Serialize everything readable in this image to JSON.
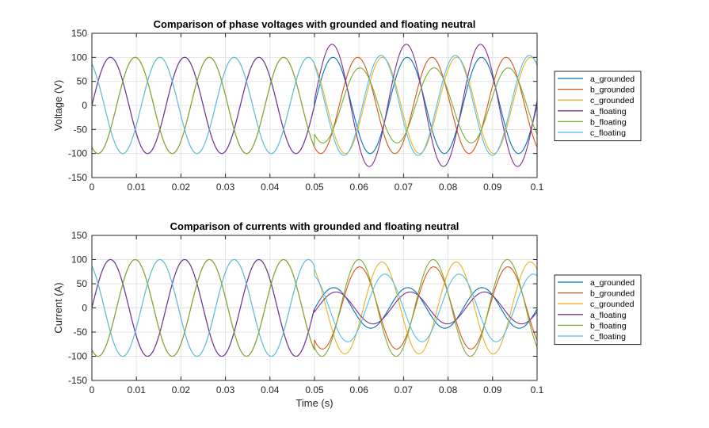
{
  "chart_data": [
    {
      "type": "line",
      "title": "Comparison of phase voltages with grounded and floating neutral",
      "xlabel": "",
      "ylabel": "Voltage (V)",
      "xlim": [
        0,
        0.1
      ],
      "ylim": [
        -150,
        150
      ],
      "xticks": [
        "0",
        "0.01",
        "0.02",
        "0.03",
        "0.04",
        "0.05",
        "0.06",
        "0.07",
        "0.08",
        "0.09",
        "0.1"
      ],
      "yticks": [
        "150",
        "100",
        "50",
        "0",
        "-50",
        "-100",
        "-150"
      ],
      "grid": true,
      "legend_position": "right",
      "fault_time": 0.05,
      "series": [
        {
          "name": "a_grounded",
          "color": "#0072BD",
          "amplitude_before": 100,
          "amplitude_after": 100
        },
        {
          "name": "b_grounded",
          "color": "#D95319",
          "amplitude_before": 100,
          "amplitude_after": 100
        },
        {
          "name": "c_grounded",
          "color": "#EDB120",
          "amplitude_before": 100,
          "amplitude_after": 100
        },
        {
          "name": "a_floating",
          "color": "#7E2F8E",
          "amplitude_before": 100,
          "amplitude_after": 127
        },
        {
          "name": "b_floating",
          "color": "#77AC30",
          "amplitude_before": 100,
          "amplitude_after": 78
        },
        {
          "name": "c_floating",
          "color": "#4DBEEE",
          "amplitude_before": 100,
          "amplitude_after": 104
        }
      ]
    },
    {
      "type": "line",
      "title": "Comparison of currents with grounded and floating neutral",
      "xlabel": "Time (s)",
      "ylabel": "Current (A)",
      "xlim": [
        0,
        0.1
      ],
      "ylim": [
        -150,
        150
      ],
      "xticks": [
        "0",
        "0.01",
        "0.02",
        "0.03",
        "0.04",
        "0.05",
        "0.06",
        "0.07",
        "0.08",
        "0.09",
        "0.1"
      ],
      "yticks": [
        "150",
        "100",
        "50",
        "0",
        "-50",
        "-100",
        "-150"
      ],
      "grid": true,
      "legend_position": "right",
      "fault_time": 0.05,
      "series": [
        {
          "name": "a_grounded",
          "color": "#0072BD",
          "amplitude_before": 100,
          "amplitude_after": 42
        },
        {
          "name": "b_grounded",
          "color": "#D95319",
          "amplitude_before": 100,
          "amplitude_after": 85
        },
        {
          "name": "c_grounded",
          "color": "#EDB120",
          "amplitude_before": 100,
          "amplitude_after": 95
        },
        {
          "name": "a_floating",
          "color": "#7E2F8E",
          "amplitude_before": 100,
          "amplitude_after": 33
        },
        {
          "name": "b_floating",
          "color": "#77AC30",
          "amplitude_before": 100,
          "amplitude_after": 100
        },
        {
          "name": "c_floating",
          "color": "#4DBEEE",
          "amplitude_before": 100,
          "amplitude_after": 70
        }
      ]
    }
  ]
}
